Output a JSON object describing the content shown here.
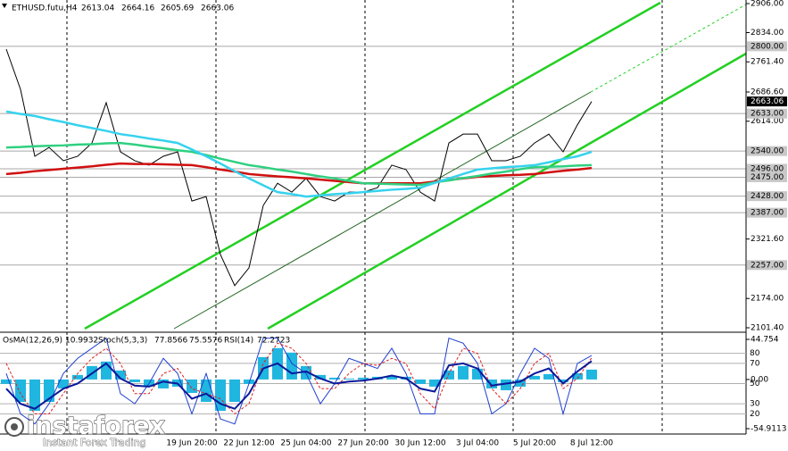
{
  "chart_data": [
    {
      "type": "line",
      "title": "ETHUSD.futu,H4",
      "ohlc": {
        "open": 2613.04,
        "high": 2664.16,
        "low": 2605.69
      },
      "categories": [
        null,
        null,
        null,
        null,
        null,
        null,
        null,
        null,
        null,
        null,
        null,
        null,
        null,
        "19 Jun 20:00",
        null,
        null,
        null,
        "22 Jun 12:00",
        null,
        null,
        null,
        "25 Jun 04:00",
        null,
        null,
        null,
        "27 Jun 20:00",
        null,
        null,
        null,
        "30 Jun 12:00",
        null,
        null,
        null,
        "3 Jul 04:00",
        null,
        null,
        null,
        "5 Jul 20:00",
        null,
        null,
        null,
        "8 Jul 12:00"
      ],
      "series": [
        {
          "color": "#000000",
          "values": [
            2793,
            2693,
            2527,
            2549,
            2516,
            2527,
            2560,
            2660,
            2538,
            2516,
            2505,
            2527,
            2538,
            2416,
            2427,
            2283,
            2206,
            2250,
            2405,
            2460,
            2438,
            2472,
            2427,
            2416,
            2438,
            2438,
            2449,
            2505,
            2494,
            2438,
            2416,
            2560,
            2582,
            2582,
            2516,
            2516,
            2527,
            2560,
            2582,
            2538,
            2605,
            2663.06
          ]
        },
        {
          "color": "#d01010",
          "values": [
            2483,
            2486,
            2490,
            2493,
            2496,
            2499,
            2502,
            2506,
            2509,
            2508,
            2508,
            2507,
            2506,
            2505,
            2500,
            2494,
            2489,
            2483,
            2480,
            2477,
            2475,
            2472,
            2469,
            2466,
            2463,
            2460,
            2460,
            2460,
            2460,
            2460,
            2464,
            2468,
            2472,
            2476,
            2478,
            2480,
            2481,
            2483,
            2487,
            2491,
            2494,
            2498
          ]
        },
        {
          "color": "#2fd080",
          "values": [
            2549,
            2550,
            2552,
            2553,
            2554,
            2556,
            2557,
            2559,
            2560,
            2556,
            2551,
            2547,
            2542,
            2538,
            2530,
            2521,
            2513,
            2505,
            2500,
            2494,
            2489,
            2483,
            2477,
            2472,
            2466,
            2460,
            2459,
            2458,
            2457,
            2456,
            2462,
            2467,
            2473,
            2478,
            2484,
            2489,
            2495,
            2500,
            2501,
            2502,
            2504,
            2505
          ]
        },
        {
          "color": "#36d2ee",
          "values": [
            2638,
            2632,
            2627,
            2619,
            2612,
            2604,
            2597,
            2590,
            2582,
            2577,
            2571,
            2566,
            2560,
            2544,
            2527,
            2509,
            2490,
            2472,
            2455,
            2438,
            2433,
            2427,
            2430,
            2433,
            2435,
            2438,
            2441,
            2444,
            2446,
            2449,
            2461,
            2472,
            2483,
            2494,
            2497,
            2500,
            2502,
            2505,
            2512,
            2520,
            2527,
            2538
          ]
        }
      ],
      "ylim": [
        2090.3,
        2914.9
      ],
      "yticks": [
        {
          "value": 2906,
          "label": "2906.00"
        },
        {
          "value": 2834,
          "label": "2834.00"
        },
        {
          "value": 2761.4,
          "label": "2761.40"
        },
        {
          "value": 2686.6,
          "label": "2686.60"
        },
        {
          "value": 2614,
          "label": "2614.00"
        },
        {
          "value": 2321.6,
          "label": "2321.60"
        },
        {
          "value": 2174,
          "label": "2174.00"
        },
        {
          "value": 2101.4,
          "label": "2101.40"
        }
      ],
      "levels": [
        {
          "value": 2800,
          "label": "2800.00"
        },
        {
          "value": 2633,
          "label": "2633.00"
        },
        {
          "value": 2540,
          "label": "2540.00"
        },
        {
          "value": 2496,
          "label": "2496.00"
        },
        {
          "value": 2475,
          "label": "2475.00"
        },
        {
          "value": 2428,
          "label": "2428.00"
        },
        {
          "value": 2387,
          "label": "2387.00"
        },
        {
          "value": 2257,
          "label": "2257.00"
        }
      ],
      "watermark": {
        "brand": "instaforex",
        "tagline": "Instant Forex Trading"
      }
    },
    {
      "type": "osc",
      "series": [
        {
          "name": "OsMA(12,26,9)",
          "style": "histogram",
          "color": "#1fb6e0",
          "values": [
            -5,
            -25,
            -35,
            -25,
            -10,
            5,
            15,
            20,
            10,
            -3,
            -8,
            -10,
            -8,
            -15,
            -25,
            -35,
            -25,
            -5,
            25,
            35,
            30,
            15,
            5,
            2,
            1,
            2,
            3,
            4,
            3,
            -5,
            -8,
            10,
            15,
            12,
            -10,
            -12,
            -8,
            4,
            6,
            -3,
            7,
            10.9932
          ]
        },
        {
          "name": "Stoch(5,3,3)",
          "style": "line",
          "axis": "y2",
          "color": "#2040d0",
          "values": [
            60,
            20,
            10,
            30,
            60,
            75,
            85,
            95,
            40,
            30,
            50,
            75,
            60,
            20,
            60,
            15,
            10,
            50,
            95,
            95,
            70,
            60,
            30,
            50,
            75,
            70,
            65,
            85,
            60,
            20,
            20,
            95,
            90,
            70,
            20,
            30,
            60,
            85,
            75,
            20,
            70,
            77.8566
          ]
        },
        {
          "style": "dashed",
          "axis": "y2",
          "color": "#e02020",
          "values": [
            70,
            40,
            20,
            20,
            40,
            60,
            75,
            85,
            70,
            40,
            40,
            60,
            65,
            45,
            40,
            35,
            20,
            30,
            70,
            90,
            85,
            70,
            45,
            45,
            60,
            70,
            68,
            75,
            70,
            40,
            25,
            60,
            85,
            80,
            45,
            30,
            45,
            70,
            80,
            45,
            55,
            75.5576
          ]
        },
        {
          "name": "RSI(14)",
          "style": "bold",
          "axis": "y2",
          "color": "#0a1a9a",
          "values": [
            45,
            30,
            25,
            35,
            45,
            50,
            60,
            70,
            55,
            48,
            47,
            52,
            50,
            35,
            40,
            30,
            25,
            40,
            65,
            70,
            60,
            62,
            55,
            50,
            52,
            53,
            55,
            58,
            55,
            45,
            42,
            68,
            70,
            65,
            48,
            50,
            52,
            60,
            65,
            50,
            62,
            72.2723
          ]
        }
      ],
      "ylim": [
        -60.89,
        50.73
      ],
      "yticks": [
        44.754,
        {
          "value": 0,
          "label": "0.00"
        },
        -54.9113
      ],
      "y2lim": [
        0,
        100
      ],
      "y2ticks": [
        80,
        70,
        50,
        30,
        20
      ]
    }
  ]
}
